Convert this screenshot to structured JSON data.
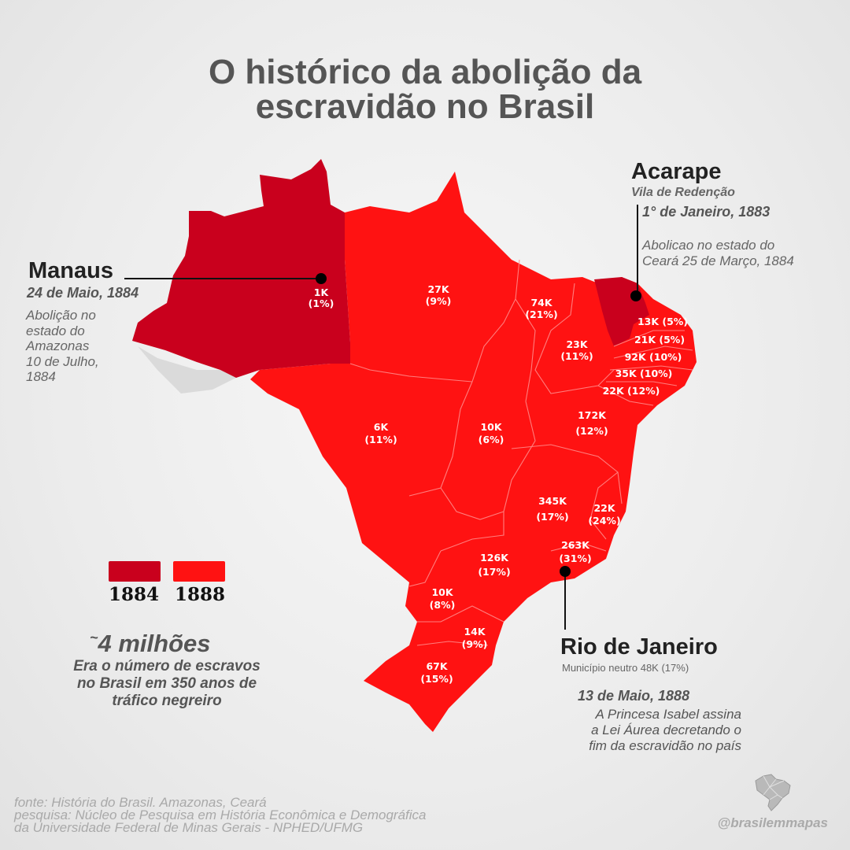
{
  "title": {
    "line1": "O histórico da abolição da",
    "line2": "escravidão no Brasil"
  },
  "colors": {
    "abolition_1884": "#c9001d",
    "abolition_1888": "#ff1212",
    "background": "#ececec"
  },
  "map_regions": [
    {
      "id": "AM",
      "value": "1K",
      "pct": "(1%)",
      "year": 1884
    },
    {
      "id": "PA",
      "value": "27K",
      "pct": "(9%)",
      "year": 1888
    },
    {
      "id": "MA",
      "value": "74K",
      "pct": "(21%)",
      "year": 1888
    },
    {
      "id": "PI",
      "value": "23K",
      "pct": "(11%)",
      "year": 1888
    },
    {
      "id": "CE",
      "value": "",
      "pct": "",
      "year": 1884
    },
    {
      "id": "RN",
      "value": "13K",
      "pct": "(5%)",
      "year": 1888
    },
    {
      "id": "PB",
      "value": "21K",
      "pct": "(5%)",
      "year": 1888
    },
    {
      "id": "PE",
      "value": "92K",
      "pct": "(10%)",
      "year": 1888
    },
    {
      "id": "AL",
      "value": "35K",
      "pct": "(10%)",
      "year": 1888
    },
    {
      "id": "SE",
      "value": "22K",
      "pct": "(12%)",
      "year": 1888
    },
    {
      "id": "BA",
      "value": "172K",
      "pct": "(12%)",
      "year": 1888
    },
    {
      "id": "MT",
      "value": "6K",
      "pct": "(11%)",
      "year": 1888
    },
    {
      "id": "GO",
      "value": "10K",
      "pct": "(6%)",
      "year": 1888
    },
    {
      "id": "MG",
      "value": "345K",
      "pct": "(17%)",
      "year": 1888
    },
    {
      "id": "ES",
      "value": "22K",
      "pct": "(24%)",
      "year": 1888
    },
    {
      "id": "RJ",
      "value": "263K",
      "pct": "(31%)",
      "year": 1888
    },
    {
      "id": "SP",
      "value": "126K",
      "pct": "(17%)",
      "year": 1888
    },
    {
      "id": "PR",
      "value": "10K",
      "pct": "(8%)",
      "year": 1888
    },
    {
      "id": "SC",
      "value": "14K",
      "pct": "(9%)",
      "year": 1888
    },
    {
      "id": "RS",
      "value": "67K",
      "pct": "(15%)",
      "year": 1888
    }
  ],
  "callouts": {
    "manaus": {
      "name": "Manaus",
      "date": "24 de Maio, 1884",
      "note_lines": [
        "Abolição no",
        "estado do",
        "Amazonas",
        "10 de Julho,",
        "1884"
      ]
    },
    "acarape": {
      "name": "Acarape",
      "subtitle": "Vila de Redenção",
      "date": "1° de Janeiro, 1883",
      "note_lines": [
        "Abolicao no estado do",
        "Ceará 25 de Março, 1884"
      ]
    },
    "rio": {
      "name": "Rio de Janeiro",
      "subtitle": "Município neutro 48K (17%)",
      "date": "13 de Maio, 1888",
      "note_lines": [
        "A Princesa Isabel assina",
        "a Lei Áurea decretando o",
        "fim da escravidão no país"
      ]
    }
  },
  "legend": {
    "label_1884": "1884",
    "label_1888": "1888"
  },
  "total": {
    "prefix": "~",
    "value": "4 milhões",
    "lines": [
      "Era o número de escravos",
      "no Brasil em 350 anos de",
      "tráfico negreiro"
    ]
  },
  "footer": {
    "lines": [
      "fonte: História do Brasil. Amazonas, Ceará",
      "pesquisa: Núcleo de Pesquisa em História Econômica e Demográfica",
      "da Universidade Federal de Minas Gerais  - NPHED/UFMG"
    ],
    "handle": "@brasilemmapas"
  },
  "icons": {
    "brand": "brazil-map-icon",
    "pin": "location-pin-icon"
  }
}
